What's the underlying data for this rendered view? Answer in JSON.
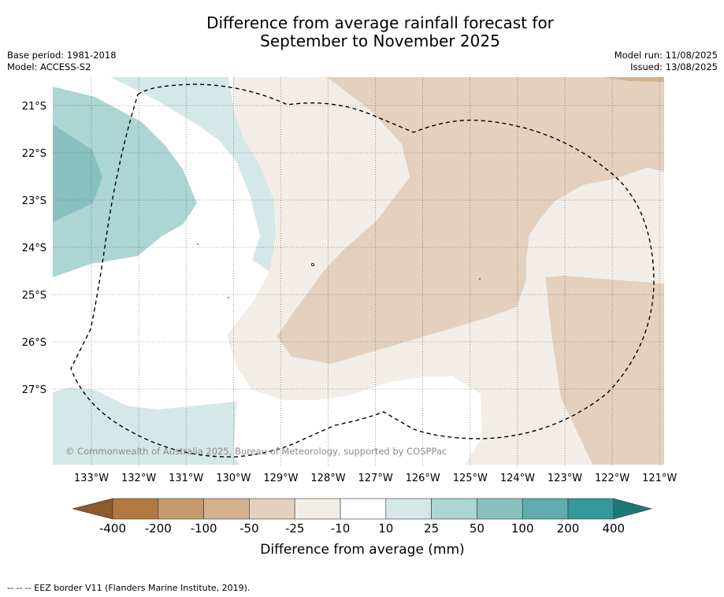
{
  "title_line1": "Difference from average rainfall forecast for",
  "title_line2": "September to November 2025",
  "base_period": "Base period: 1981-2018",
  "model": "Model: ACCESS-S2",
  "model_run": "Model run: 11/08/2025",
  "issued": "Issued: 13/08/2025",
  "copyright": "© Commonwealth of Australia 2025, Bureau of Meteorology, supported by COSPPac",
  "lat_labels": [
    "21°S",
    "22°S",
    "23°S",
    "24°S",
    "25°S",
    "26°S",
    "27°S"
  ],
  "lon_labels": [
    "133°W",
    "132°W",
    "131°W",
    "130°W",
    "129°W",
    "128°W",
    "127°W",
    "126°W",
    "125°W",
    "124°W",
    "123°W",
    "122°W",
    "121°W"
  ],
  "colorbar": {
    "title": "Difference from average (mm)",
    "labels": [
      "-400",
      "-200",
      "-100",
      "-50",
      "-25",
      "-10",
      "10",
      "25",
      "50",
      "100",
      "200",
      "400"
    ],
    "colors": [
      "#8c5a2b",
      "#b07940",
      "#c49a6c",
      "#d4b290",
      "#e3d0bf",
      "#f3ede8",
      "#ffffff",
      "#d4e8e7",
      "#acd5d4",
      "#88c0c0",
      "#5fadad",
      "#33999a",
      "#1e7777"
    ]
  },
  "footer": "-- -- -- EEZ border V11 (Flanders Marine Institute, 2019)."
}
